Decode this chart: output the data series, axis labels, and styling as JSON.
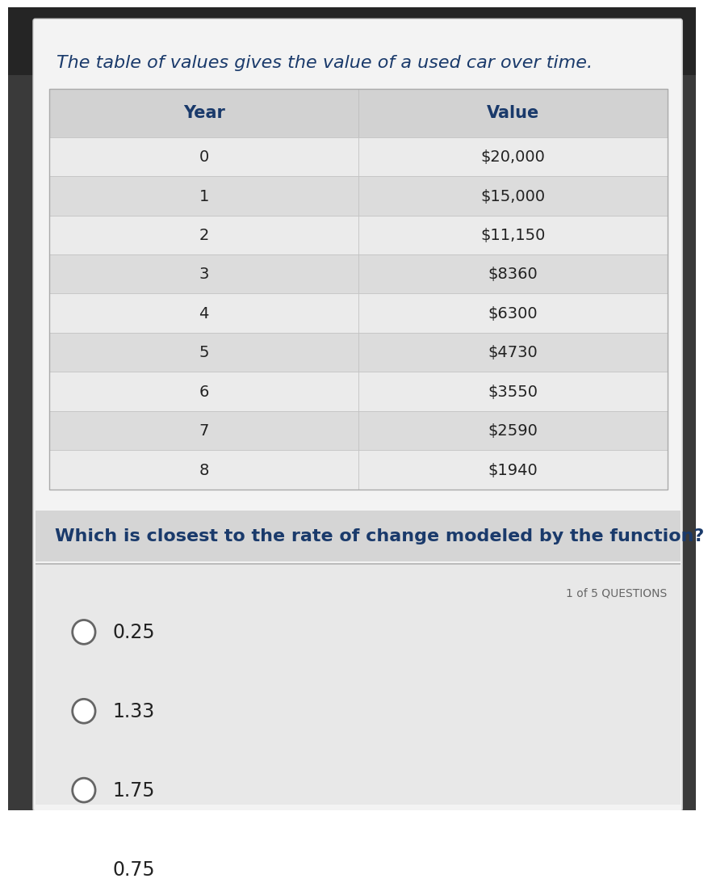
{
  "title": "The table of values gives the value of a used car over time.",
  "title_color": "#1a3a6b",
  "title_fontsize": 16,
  "col1_header": "Year",
  "col2_header": "Value",
  "header_color": "#1a3a6b",
  "rows": [
    [
      "0",
      "$20,000"
    ],
    [
      "1",
      "$15,000"
    ],
    [
      "2",
      "$11,150"
    ],
    [
      "3",
      "$8360"
    ],
    [
      "4",
      "$6300"
    ],
    [
      "5",
      "$4730"
    ],
    [
      "6",
      "$3550"
    ],
    [
      "7",
      "$2590"
    ],
    [
      "8",
      "$1940"
    ]
  ],
  "question": "Which is closest to the rate of change modeled by the function?",
  "question_color": "#1a3a6b",
  "question_fontsize": 16,
  "question_label": "1 of 5 QUESTIONS",
  "choices": [
    "0.25",
    "1.33",
    "1.75",
    "0.75"
  ],
  "choice_fontsize": 17,
  "bg_outer_top": "#2a2a2a",
  "bg_card": "#f2f2f2",
  "bg_table_header": "#d0d0d0",
  "bg_row_light": "#ebebeb",
  "bg_row_dark": "#dcdcdc",
  "bg_question_area": "#d8d8d8",
  "bg_answers_area": "#e8e8e8",
  "cell_text_color": "#222222",
  "circle_color": "#666666"
}
